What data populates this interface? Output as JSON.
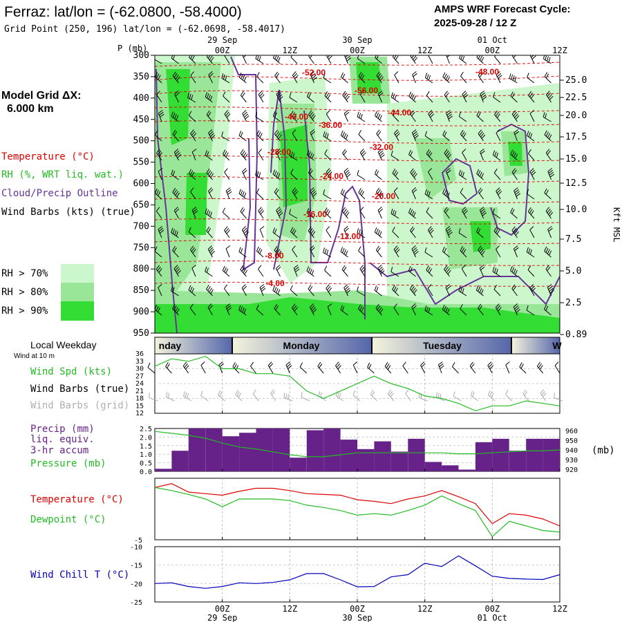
{
  "header": {
    "title": "Ferraz:  lat/lon = (-62.0800, -58.4000)",
    "grid_point": "Grid Point (250, 196) lat/lon = (-62.0698, -58.4017)",
    "forecast_line1": "AMPS WRF Forecast Cycle:",
    "forecast_line2": "2025-09-28 / 12  Z"
  },
  "left_panel": {
    "model_grid_label": "Model Grid ΔX:",
    "model_grid_value": "6.000 km",
    "legend": {
      "temperature": "Temperature (°C)",
      "rh": "RH (%, WRT liq. wat.)",
      "cloud": "Cloud/Precip Outline",
      "wind_barbs": "Wind Barbs (kts) (true)",
      "rh70": "RH > 70%",
      "rh80": "RH > 80%",
      "rh90": "RH > 90%"
    },
    "local_weekday": "Local Weekday",
    "wind_at_10m": "Wind at 10 m",
    "wind_spd_label": "Wind Spd (kts)",
    "wind_barbs_true": "Wind Barbs (true)",
    "wind_barbs_grid": "Wind Barbs (grid)",
    "precip_label1": "Precip (mm)",
    "precip_label2": "liq. equiv.",
    "precip_label3": "3-hr accum",
    "pressure_label": "Pressure (mb)",
    "temperature_label": "Temperature (°C)",
    "dewpoint_label": "Dewpoint (°C)",
    "wind_chill_label": "Wind Chill T (°C)"
  },
  "colors": {
    "rh70": "#ccf7cc",
    "rh80": "#99e699",
    "rh90": "#33dd33",
    "temperature": "#dd0000",
    "dewpoint": "#22bb22",
    "cloud": "#663399",
    "precip": "#662288",
    "wind_chill": "#0000bb",
    "weekday": "#5566aa"
  },
  "chart_data": [
    {
      "type": "heatmap",
      "name": "vertical cross-section",
      "y_axis_title": "P (mb)",
      "pressure_levels": [
        300,
        350,
        400,
        450,
        500,
        550,
        600,
        650,
        700,
        750,
        800,
        850,
        900,
        950
      ],
      "right_axis_title": "Kft MSL",
      "right_axis_ticks": [
        "25.0",
        "22.5",
        "20.0",
        "17.5",
        "15.0",
        "12.5",
        "10.0",
        "7.5",
        "5.0",
        "2.5",
        "0.89"
      ],
      "top_time_labels": [
        "00Z",
        "12Z",
        "00Z",
        "12Z",
        "00Z",
        "12Z"
      ],
      "top_date_labels": [
        "29 Sep",
        "30 Sep",
        "01 Oct"
      ],
      "temperature_contour_labels": [
        "-52.00",
        "-48.00",
        "-56.00",
        "-40.00",
        "-44.00",
        "-36.00",
        "-28.00",
        "-32.00",
        "-24.00",
        "-20.00",
        "-16.00",
        "-12.00",
        "-8.00",
        "-4.00"
      ]
    },
    {
      "type": "line",
      "name": "wind speed",
      "weekday_labels": [
        "nday",
        "Monday",
        "Tuesday",
        "W"
      ],
      "y_ticks": [
        "36",
        "33",
        "30",
        "27",
        "24",
        "21",
        "18",
        "15",
        "12"
      ],
      "ylim": [
        12,
        36
      ],
      "x_hours": [
        -12,
        -9,
        -6,
        -3,
        0,
        3,
        6,
        9,
        12,
        15,
        18,
        21,
        24,
        27,
        30,
        33,
        36,
        39,
        42,
        45,
        48,
        51,
        54,
        57,
        60
      ],
      "values": [
        31,
        34,
        33,
        35,
        30,
        30,
        28,
        28,
        27,
        21,
        18,
        21,
        24,
        27,
        24,
        22,
        19,
        18,
        16,
        13,
        15,
        15,
        17,
        16,
        15
      ]
    },
    {
      "type": "bar",
      "name": "precip and pressure",
      "left_ticks": [
        "2.5",
        "2.0",
        "1.5",
        "1.0",
        "0.5",
        "0.0"
      ],
      "right_ticks": [
        "960",
        "950",
        "940",
        "930",
        "920"
      ],
      "right_unit": "(mb)",
      "ylim_precip": [
        0,
        2.5
      ],
      "ylim_pressure": [
        918,
        962
      ],
      "x_hours": [
        -10.5,
        -7.5,
        -4.5,
        -1.5,
        1.5,
        4.5,
        7.5,
        10.5,
        13.5,
        16.5,
        19.5,
        22.5,
        25.5,
        28.5,
        31.5,
        34.5,
        37.5,
        40.5,
        43.5,
        46.5,
        49.5,
        52.5,
        55.5,
        58.5
      ],
      "precip": [
        0.15,
        1.2,
        2.5,
        2.5,
        2.05,
        2.25,
        2.5,
        2.5,
        0.8,
        2.4,
        2.5,
        1.85,
        1.3,
        1.75,
        1.15,
        1.9,
        0.55,
        0.35,
        0.1,
        1.7,
        1.9,
        1.2,
        1.9,
        1.9
      ],
      "pressure_x": [
        -12,
        -9,
        -6,
        -3,
        0,
        3,
        6,
        9,
        12,
        15,
        18,
        21,
        24,
        27,
        30,
        33,
        36,
        39,
        42,
        45,
        48,
        51,
        54,
        57,
        60
      ],
      "pressure": [
        959,
        957,
        955,
        952,
        947,
        943,
        941,
        938,
        935,
        933,
        933,
        935,
        937,
        937,
        937,
        937,
        937,
        937,
        936,
        936,
        937,
        938,
        939,
        939,
        940
      ]
    },
    {
      "type": "line",
      "name": "temperature and dewpoint",
      "left_ticks": [
        "-5"
      ],
      "ylim": [
        -5,
        3
      ],
      "x_hours": [
        -12,
        -9,
        -6,
        -3,
        0,
        3,
        6,
        9,
        12,
        15,
        18,
        21,
        24,
        27,
        30,
        33,
        36,
        39,
        42,
        45,
        48,
        51,
        54,
        57,
        60
      ],
      "series": [
        {
          "name": "Temperature",
          "values": [
            1.8,
            2.3,
            1.2,
            1.0,
            0.8,
            1.3,
            1.7,
            1.7,
            1.4,
            1.0,
            0.9,
            0.8,
            0.2,
            0.0,
            -0.3,
            0.3,
            0.7,
            1.4,
            0.6,
            -0.3,
            -2.9,
            -1.6,
            -1.8,
            -2.3,
            -3.2
          ]
        },
        {
          "name": "Dewpoint",
          "values": [
            1.8,
            1.4,
            0.9,
            0.3,
            -0.7,
            0.3,
            0.3,
            0.3,
            0.1,
            -0.5,
            -0.8,
            -1.2,
            -1.8,
            -1.6,
            -1.8,
            -1.2,
            -0.5,
            0.7,
            -0.3,
            -1.2,
            -4.6,
            -2.6,
            -3.2,
            -3.8,
            -4.0
          ]
        }
      ]
    },
    {
      "type": "line",
      "name": "wind chill",
      "y_ticks": [
        "-10",
        "-15",
        "-20",
        "-25"
      ],
      "ylim": [
        -25,
        -10
      ],
      "x_hours": [
        -12,
        -9,
        -6,
        -3,
        0,
        3,
        6,
        9,
        12,
        15,
        18,
        21,
        24,
        27,
        30,
        33,
        36,
        39,
        42,
        45,
        48,
        51,
        54,
        57,
        60
      ],
      "values": [
        -20.0,
        -19.8,
        -20.8,
        -21.3,
        -20.8,
        -19.8,
        -20.0,
        -19.7,
        -19.0,
        -17.3,
        -17.3,
        -19.0,
        -20.9,
        -20.8,
        -18.2,
        -17.6,
        -14.5,
        -15.4,
        -12.5,
        -15.2,
        -18.0,
        -18.6,
        -18.8,
        -18.9,
        -17.6
      ]
    }
  ],
  "bottom_axis": {
    "time_labels": [
      "00Z",
      "12Z",
      "00Z",
      "12Z",
      "00Z",
      "12Z"
    ],
    "date_labels": [
      "29 Sep",
      "30 Sep",
      "01 Oct"
    ]
  }
}
